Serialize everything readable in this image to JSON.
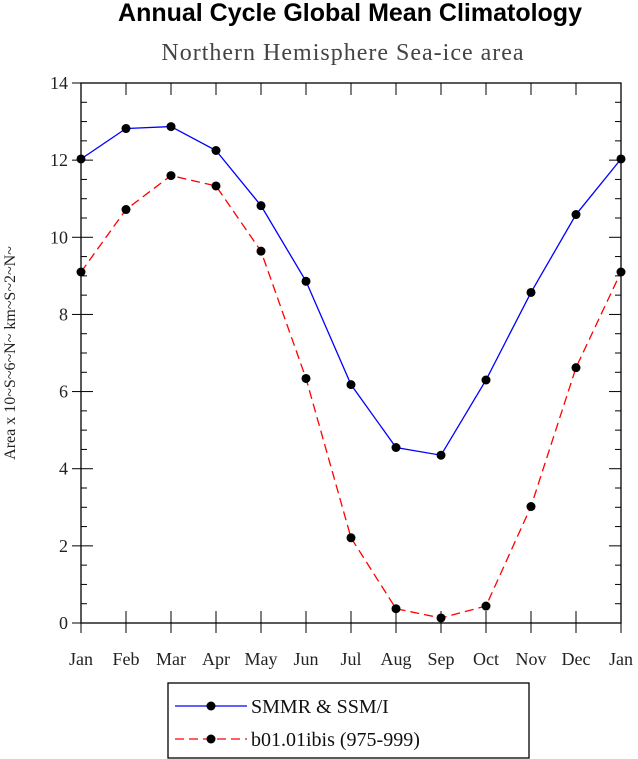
{
  "chart_data": {
    "type": "line",
    "title": "Annual Cycle Global Mean Climatology",
    "subtitle": "Northern Hemisphere Sea-ice area",
    "xlabel": "",
    "ylabel": "Area x 10~S~6~N~ km~S~2~N~",
    "categories": [
      "Jan",
      "Feb",
      "Mar",
      "Apr",
      "May",
      "Jun",
      "Jul",
      "Aug",
      "Sep",
      "Oct",
      "Nov",
      "Dec",
      "Jan"
    ],
    "ylim": [
      0,
      14
    ],
    "yticks": [
      0,
      2,
      4,
      6,
      8,
      10,
      12,
      14
    ],
    "grid": false,
    "legend_position": "bottom",
    "series": [
      {
        "name": "SMMR & SSM/I",
        "color": "#0000ff",
        "line_style": "solid",
        "marker": "filled-circle",
        "values": [
          12.03,
          12.82,
          12.87,
          12.25,
          10.82,
          8.86,
          6.18,
          4.55,
          4.35,
          6.3,
          8.57,
          10.59,
          12.03
        ]
      },
      {
        "name": "b01.01ibis (975-999)",
        "color": "#ff0000",
        "line_style": "dashed",
        "marker": "filled-circle",
        "values": [
          9.1,
          10.72,
          11.6,
          11.33,
          9.64,
          6.34,
          2.21,
          0.37,
          0.13,
          0.44,
          3.02,
          6.62,
          9.1
        ]
      }
    ]
  }
}
